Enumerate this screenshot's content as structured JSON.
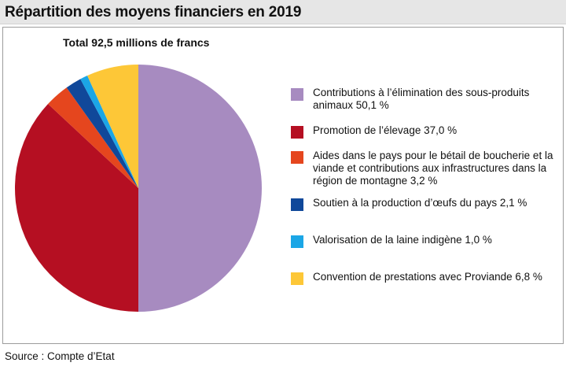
{
  "title": "Répartition des moyens financiers en 2019",
  "source": "Source : Compte d’Etat",
  "chart_data": {
    "type": "pie",
    "subtitle": "Total 92,5 millions de francs",
    "total_label": "Total 92,5 millions de francs",
    "slices": [
      {
        "label": "Contributions à l’élimination des sous-produits animaux 50,1 %",
        "value": 50.1,
        "color": "#a78bc0"
      },
      {
        "label": "Promotion de l’élevage 37,0 %",
        "value": 37.0,
        "color": "#b50f22"
      },
      {
        "label": "Aides dans le pays pour le bétail de boucherie et la viande et contributions aux infrastructures dans la région de montagne 3,2 %",
        "value": 3.2,
        "color": "#e5461e"
      },
      {
        "label": "Soutien à la production d’œufs du pays 2,1 %",
        "value": 2.1,
        "color": "#10489a"
      },
      {
        "label": "Valorisation de la laine indigène 1,0 %",
        "value": 1.0,
        "color": "#1ba6e6"
      },
      {
        "label": "Convention de prestations avec Proviande 6,8 %",
        "value": 6.8,
        "color": "#fdc737"
      }
    ],
    "start": "12 o'clock",
    "direction": "clockwise",
    "legend_position": "right"
  }
}
